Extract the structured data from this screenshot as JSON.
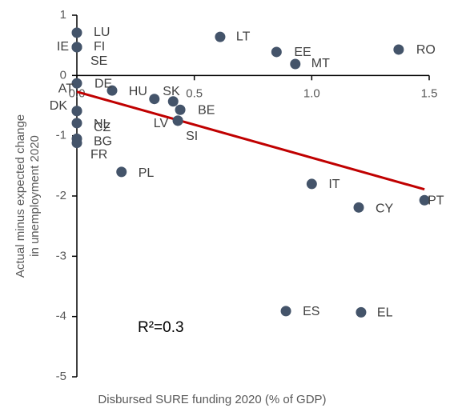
{
  "chart_data": {
    "type": "scatter",
    "xlabel": "Disbursed SURE funding 2020 (% of GDP)",
    "ylabel": [
      "Actual minus expected change",
      "in unemployment 2020"
    ],
    "annotation": "R²=0.3",
    "xlim": [
      0,
      1.5
    ],
    "xticks": [
      {
        "value": 0,
        "label": "0.0"
      },
      0.5,
      {
        "value": 1,
        "label": "1.0"
      },
      {
        "value": 1.5,
        "label": "1.5"
      }
    ],
    "ylim": [
      -5,
      1
    ],
    "yticks": [
      1,
      0,
      -1,
      -2,
      -3,
      -4,
      -5
    ],
    "series": [
      {
        "color": "#44546a",
        "labels": [
          "LU",
          "IE",
          "FI",
          "SE",
          "AT",
          "DE",
          "DK",
          "CZ",
          "NL",
          "BG",
          "FR",
          "HU",
          "SK",
          "BE",
          "LV",
          "SI",
          "PL",
          "LT",
          "EE",
          "MT",
          "RO",
          "IT",
          "CY",
          "PT",
          "ES",
          "EL"
        ],
        "x": [
          0,
          0,
          0,
          0,
          0,
          0.15,
          0,
          0,
          0,
          0,
          0,
          0.33,
          0.41,
          0.44,
          0.43,
          0.43,
          0.19,
          0.61,
          0.85,
          0.93,
          1.37,
          1.0,
          1.2,
          1.48,
          0.89,
          1.21
        ],
        "y": [
          0.71,
          0.47,
          0.47,
          0.47,
          -0.13,
          -0.25,
          -0.59,
          -0.59,
          -0.79,
          -1.05,
          -1.12,
          -0.39,
          -0.43,
          -0.57,
          -0.75,
          -0.75,
          -1.6,
          0.64,
          0.39,
          0.19,
          0.43,
          -1.8,
          -2.19,
          -2.07,
          -3.91,
          -3.93
        ]
      }
    ],
    "trendline": {
      "color": "#c00000",
      "x": [
        0,
        1.48
      ],
      "y": [
        -0.27,
        -1.89
      ]
    }
  }
}
